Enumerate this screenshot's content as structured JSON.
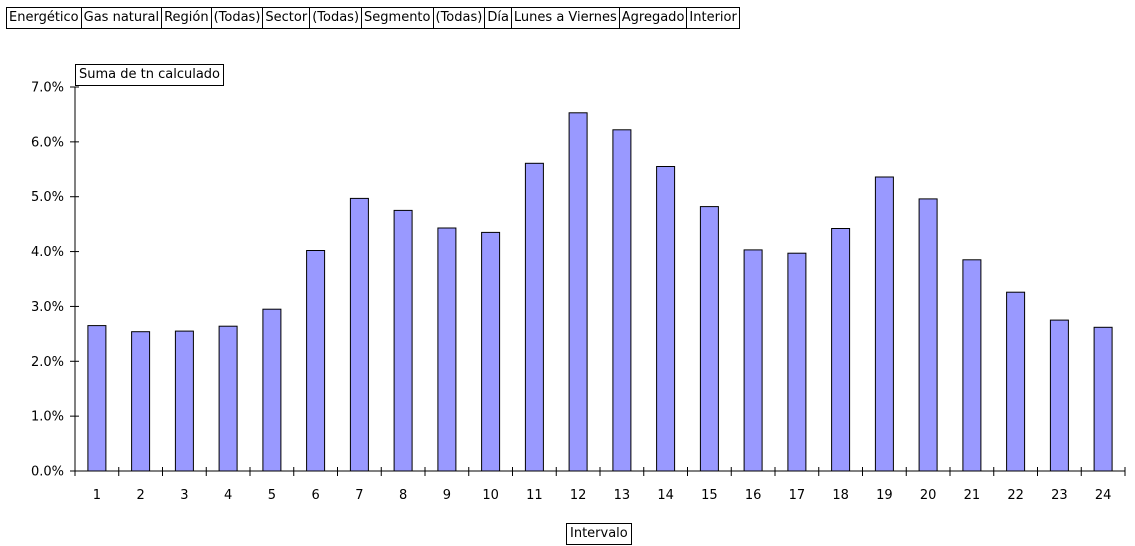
{
  "filters": [
    {
      "label": "Energético",
      "value": "Gas natural"
    },
    {
      "label": "Región",
      "value": "(Todas)"
    },
    {
      "label": "Sector",
      "value": "(Todas)"
    },
    {
      "label": "Segmento",
      "value": "(Todas)"
    },
    {
      "label": "Día",
      "value": "Lunes a Viernes"
    },
    {
      "label": "Agregado",
      "value": "Interior"
    }
  ],
  "measure_field": "Suma de tn calculado",
  "axis_field": "Intervalo",
  "colors": {
    "bar_fill": "#9999ff",
    "bar_stroke": "#000000",
    "axis": "#000000"
  },
  "chart_data": {
    "type": "bar",
    "categories": [
      "1",
      "2",
      "3",
      "4",
      "5",
      "6",
      "7",
      "8",
      "9",
      "10",
      "11",
      "12",
      "13",
      "14",
      "15",
      "16",
      "17",
      "18",
      "19",
      "20",
      "21",
      "22",
      "23",
      "24"
    ],
    "values": [
      2.65,
      2.54,
      2.55,
      2.64,
      2.95,
      4.02,
      4.97,
      4.75,
      4.43,
      4.35,
      5.61,
      6.53,
      6.22,
      5.55,
      4.82,
      4.03,
      3.97,
      4.42,
      5.36,
      4.96,
      3.85,
      3.26,
      2.75,
      2.62
    ],
    "yticks": [
      "0.0%",
      "1.0%",
      "2.0%",
      "3.0%",
      "4.0%",
      "5.0%",
      "6.0%",
      "7.0%"
    ],
    "ylim": [
      0,
      7
    ],
    "xlabel": "Intervalo",
    "ylabel": "Suma de tn calculado",
    "grid": false,
    "legend": "none"
  }
}
